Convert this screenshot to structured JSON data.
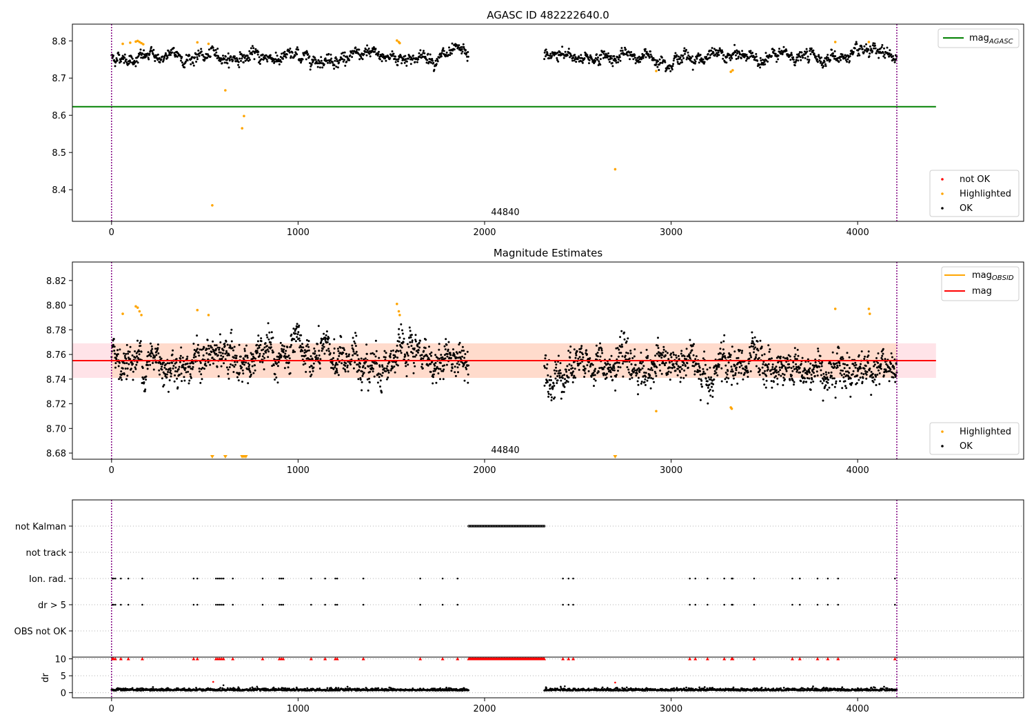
{
  "chart_data": [
    {
      "type": "scatter",
      "title": "AGASC ID 482222640.0",
      "xlim": [
        -210,
        4890
      ],
      "ylim": [
        8.315,
        8.845
      ],
      "xticks": [
        0,
        1000,
        2000,
        3000,
        4000
      ],
      "yticks": [
        8.4,
        8.5,
        8.6,
        8.7,
        8.8
      ],
      "annotation": "44840",
      "vlines": [
        0,
        4210
      ],
      "agasc_mag": 8.623,
      "ok_level": 8.757,
      "ok_segments": [
        [
          0,
          1915
        ],
        [
          2320,
          4210
        ]
      ],
      "highlighted_points": [
        [
          60,
          8.792
        ],
        [
          100,
          8.795
        ],
        [
          130,
          8.798
        ],
        [
          140,
          8.8
        ],
        [
          150,
          8.797
        ],
        [
          160,
          8.794
        ],
        [
          170,
          8.791
        ],
        [
          460,
          8.796
        ],
        [
          520,
          8.792
        ],
        [
          610,
          8.667
        ],
        [
          700,
          8.565
        ],
        [
          710,
          8.598
        ],
        [
          540,
          8.358
        ],
        [
          1530,
          8.801
        ],
        [
          1540,
          8.797
        ],
        [
          1545,
          8.794
        ],
        [
          2700,
          8.455
        ],
        [
          2920,
          8.719
        ],
        [
          3320,
          8.717
        ],
        [
          3330,
          8.721
        ],
        [
          3880,
          8.797
        ],
        [
          4060,
          8.797
        ]
      ],
      "not_ok_points": [],
      "legend": {
        "line": "mag",
        "line_sub": "AGASC",
        "markers": [
          "not OK",
          "Highlighted",
          "OK"
        ]
      },
      "colors": {
        "ok": "#000000",
        "highlighted": "#ffa500",
        "not_ok": "#ff0000",
        "agasc": "#008000",
        "vline": "#800080"
      }
    },
    {
      "type": "scatter",
      "title": "Magnitude Estimates",
      "xlim": [
        -210,
        4890
      ],
      "ylim": [
        8.675,
        8.835
      ],
      "xticks": [
        0,
        1000,
        2000,
        3000,
        4000
      ],
      "yticks": [
        8.68,
        8.7,
        8.72,
        8.74,
        8.76,
        8.78,
        8.8,
        8.82
      ],
      "annotation": "44840",
      "vlines": [
        0,
        4210
      ],
      "mag": 8.755,
      "band": [
        8.741,
        8.769
      ],
      "ok_segments": [
        [
          0,
          1915
        ],
        [
          2320,
          4210
        ]
      ],
      "highlighted_points": [
        [
          60,
          8.793
        ],
        [
          130,
          8.799
        ],
        [
          140,
          8.798
        ],
        [
          150,
          8.795
        ],
        [
          160,
          8.792
        ],
        [
          460,
          8.796
        ],
        [
          520,
          8.792
        ],
        [
          1530,
          8.801
        ],
        [
          1540,
          8.795
        ],
        [
          1545,
          8.792
        ],
        [
          2920,
          8.714
        ],
        [
          3320,
          8.717
        ],
        [
          3325,
          8.716
        ],
        [
          3880,
          8.797
        ],
        [
          4060,
          8.797
        ],
        [
          4065,
          8.793
        ]
      ],
      "clipped_points": [
        540,
        610,
        700,
        710,
        720,
        2700
      ],
      "legend": {
        "line1": "mag",
        "line1_sub": "OBSID",
        "line2": "mag",
        "markers": [
          "Highlighted",
          "OK"
        ]
      },
      "colors": {
        "ok": "#000000",
        "highlighted": "#ffa500",
        "mag_obsid": "#ffa500",
        "mag": "#ff0000",
        "band": "#ffc0cb",
        "band_overlap": "#ffd8c4",
        "vline": "#800080"
      }
    },
    {
      "type": "scatter",
      "title": "",
      "xlim": [
        -210,
        4890
      ],
      "categories": [
        "not Kalman",
        "not track",
        "Ion. rad.",
        "dr > 5",
        "OBS not OK"
      ],
      "not_kalman_range": [
        1915,
        2320
      ],
      "flag_times": [
        5,
        10,
        20,
        50,
        90,
        165,
        440,
        460,
        560,
        570,
        580,
        590,
        600,
        650,
        810,
        900,
        910,
        920,
        1070,
        1145,
        1200,
        1210,
        1350,
        1655,
        1775,
        1855,
        2420,
        2450,
        2475,
        3100,
        3130,
        3195,
        3285,
        3325,
        3330,
        3445,
        3650,
        3690,
        3785,
        3840,
        3895,
        4200
      ],
      "dr_axis": {
        "label": "dr",
        "yticks": [
          0,
          5,
          10
        ],
        "ylim": [
          -1.5,
          10.5
        ]
      },
      "dr_outliers": [
        [
          545,
          3.2
        ],
        [
          600,
          2.2
        ],
        [
          2700,
          3.0
        ],
        [
          780,
          1.8
        ],
        [
          2430,
          1.9
        ]
      ],
      "colors": {
        "ok": "#000000",
        "flag": "#ff0000",
        "grid": "#b0b0b0",
        "vline": "#800080"
      }
    }
  ]
}
